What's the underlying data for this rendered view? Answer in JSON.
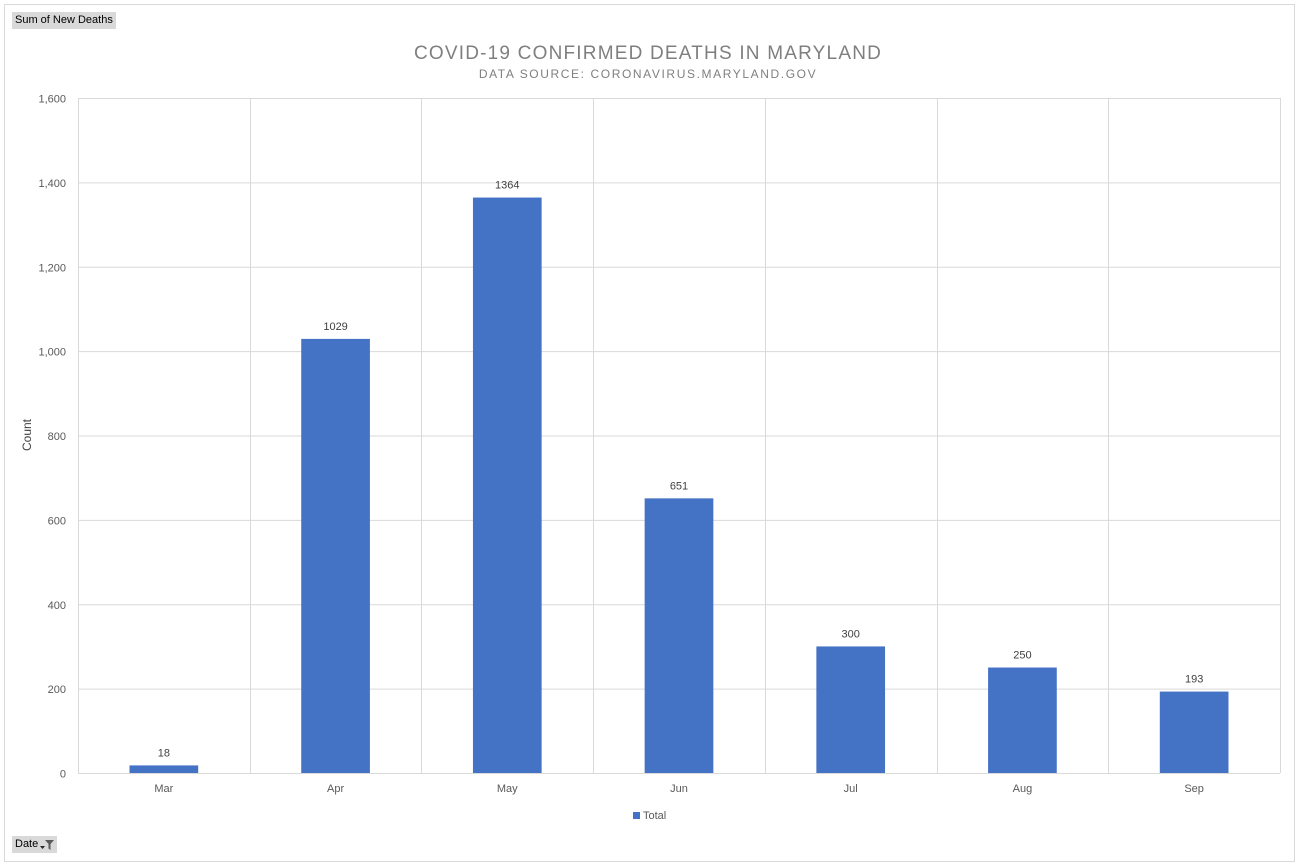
{
  "field_buttons": {
    "values_field": "Sum of New Deaths",
    "axis_field": "Date"
  },
  "colors": {
    "bar": "#4472c4",
    "grid": "#d9d9d9",
    "text": "#595959",
    "title": "#7f7f7f"
  },
  "chart_data": {
    "type": "bar",
    "title": "COVID-19 CONFIRMED DEATHS IN MARYLAND",
    "subtitle": "DATA SOURCE: CORONAVIRUS.MARYLAND.GOV",
    "xlabel": "",
    "ylabel": "Count",
    "categories": [
      "Mar",
      "Apr",
      "May",
      "Jun",
      "Jul",
      "Aug",
      "Sep"
    ],
    "series": [
      {
        "name": "Total",
        "values": [
          18,
          1029,
          1364,
          651,
          300,
          250,
          193
        ]
      }
    ],
    "data_labels": [
      "18",
      "1029",
      "1364",
      "651",
      "300",
      "250",
      "193"
    ],
    "ylim": [
      0,
      1600
    ],
    "yticks": [
      0,
      200,
      400,
      600,
      800,
      1000,
      1200,
      1400,
      1600
    ],
    "ytick_labels": [
      "0",
      "200",
      "400",
      "600",
      "800",
      "1,000",
      "1,200",
      "1,400",
      "1,600"
    ],
    "grid": true,
    "legend_position": "bottom"
  }
}
